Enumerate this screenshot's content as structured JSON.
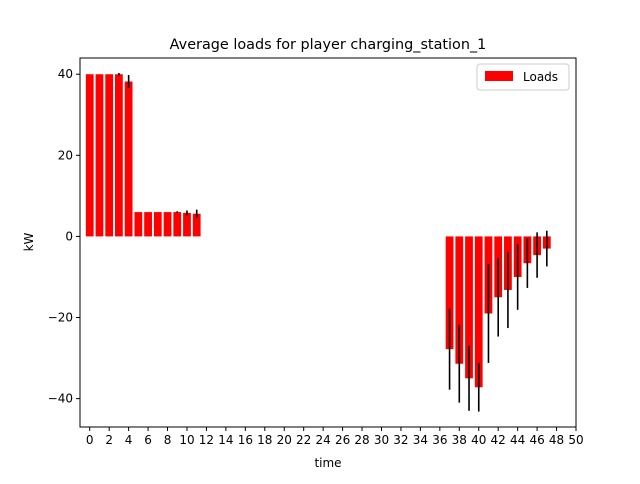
{
  "chart_data": {
    "type": "bar",
    "title": "Average loads for player charging_station_1",
    "xlabel": "time",
    "ylabel": "kW",
    "xlim": [
      -1,
      50
    ],
    "ylim": [
      -47,
      44
    ],
    "xticks": [
      0,
      2,
      4,
      6,
      8,
      10,
      12,
      14,
      16,
      18,
      20,
      22,
      24,
      26,
      28,
      30,
      32,
      34,
      36,
      38,
      40,
      42,
      44,
      46,
      48,
      50
    ],
    "yticks": [
      -40,
      -20,
      0,
      20,
      40
    ],
    "legend": {
      "position": "top-right",
      "entries": [
        "Loads"
      ]
    },
    "grid": false,
    "bar_color": "#ff0000",
    "error_color": "#000000",
    "series": [
      {
        "name": "Loads",
        "x": [
          0,
          1,
          2,
          3,
          4,
          5,
          6,
          7,
          8,
          9,
          10,
          11,
          37,
          38,
          39,
          40,
          41,
          42,
          43,
          44,
          45,
          46,
          47
        ],
        "values": [
          40,
          40,
          40,
          40,
          38.2,
          6,
          6,
          6,
          6,
          6,
          5.8,
          5.6,
          -27.8,
          -31.4,
          -35,
          -37.2,
          -19,
          -15,
          -13.2,
          -10,
          -6.6,
          -4.6,
          -3
        ],
        "errors": [
          0,
          0,
          0,
          0.3,
          1.6,
          0,
          0,
          0,
          0,
          0.2,
          0.6,
          1,
          10,
          9.6,
          8,
          6,
          12.2,
          9.7,
          9.4,
          8.1,
          6.1,
          5.6,
          4.4
        ]
      }
    ]
  }
}
